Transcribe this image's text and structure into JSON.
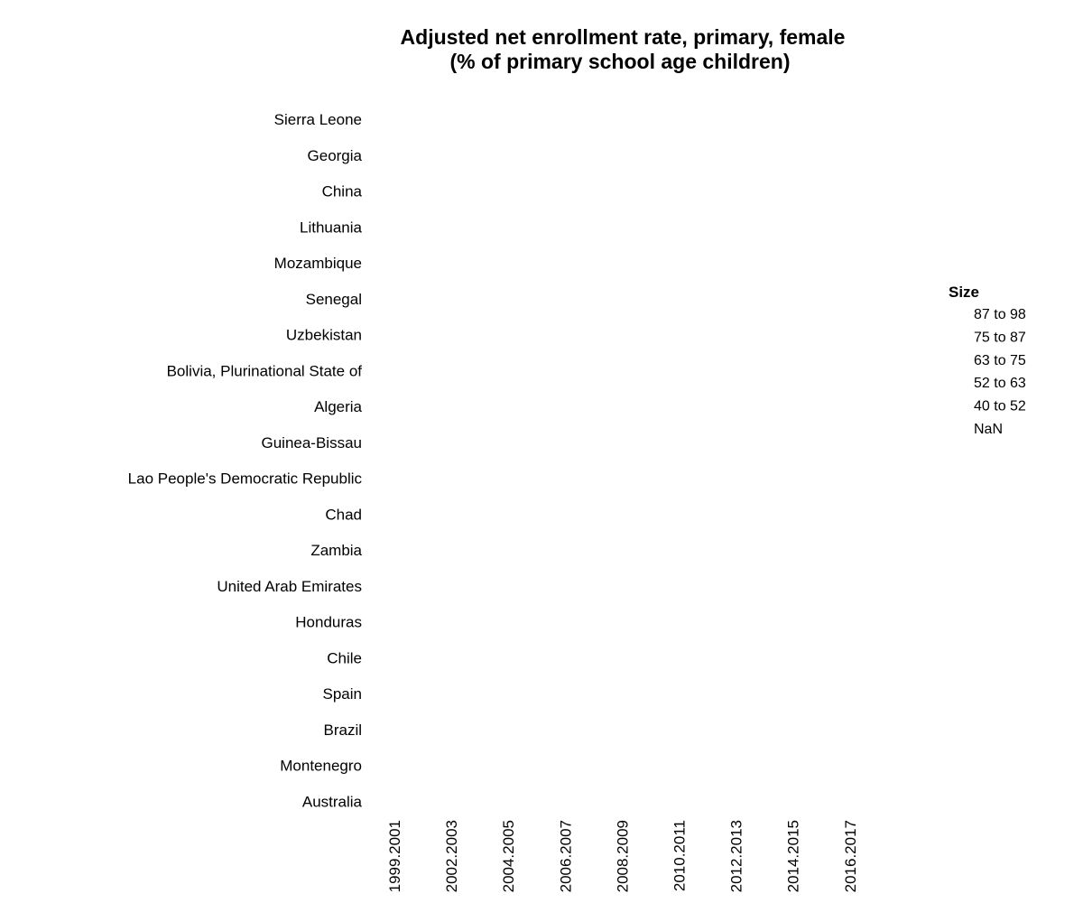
{
  "chart_data": {
    "type": "scatter",
    "title": [
      "Adjusted net enrollment rate, primary, female",
      "(% of primary school age children)"
    ],
    "xlabel": "",
    "ylabel": "",
    "x": [
      "1999.2001",
      "2002.2003",
      "2004.2005",
      "2006.2007",
      "2008.2009",
      "2010.2011",
      "2012.2013",
      "2014.2015",
      "2016.2017"
    ],
    "categories": [
      "Sierra Leone",
      "Georgia",
      "China",
      "Lithuania",
      "Mozambique",
      "Senegal",
      "Uzbekistan",
      "Bolivia, Plurinational State of",
      "Algeria",
      "Guinea-Bissau",
      "Lao People's Democratic Republic",
      "Chad",
      "Zambia",
      "United Arab Emirates",
      "Honduras",
      "Chile",
      "Spain",
      "Brazil",
      "Montenegro",
      "Australia"
    ],
    "series": [],
    "legend": {
      "title": "Size",
      "entries": [
        "87 to 98",
        "75 to 87",
        "63 to 75",
        "52 to 63",
        "40 to 52",
        "NaN"
      ],
      "placement": "right"
    },
    "grid": false
  }
}
